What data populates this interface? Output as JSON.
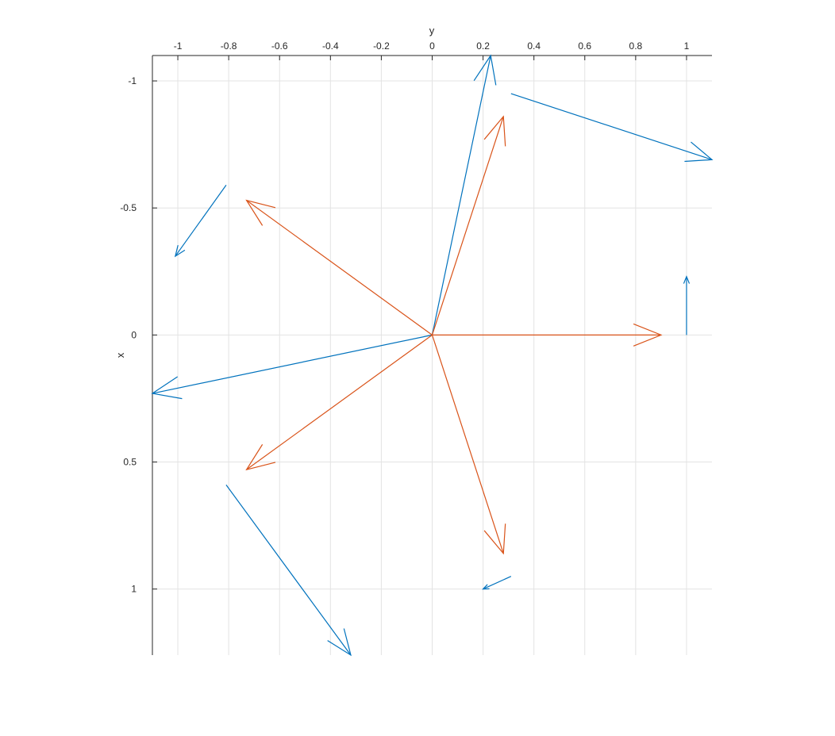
{
  "chart_data": {
    "type": "quiver",
    "title": "",
    "xlabel": "y",
    "ylabel": "x",
    "x_axis_location": "top",
    "y_axis_direction": "reversed",
    "xlim": [
      -1.1,
      1.1
    ],
    "ylim": [
      -1.1,
      1.26
    ],
    "grid": true,
    "x_ticks": [
      -1,
      -0.8,
      -0.6,
      -0.4,
      -0.2,
      0,
      0.2,
      0.4,
      0.6,
      0.8,
      1
    ],
    "x_tick_labels": [
      "-1",
      "-0.8",
      "-0.6",
      "-0.4",
      "-0.2",
      "0",
      "0.2",
      "0.4",
      "0.6",
      "0.8",
      "1"
    ],
    "y_ticks": [
      -1,
      -0.5,
      0,
      0.5,
      1
    ],
    "y_tick_labels": [
      "-1",
      "-0.5",
      "0",
      "0.5",
      "1"
    ],
    "series": [
      {
        "color": "#0072BD",
        "vectors": [
          {
            "y": 0,
            "x": 0,
            "dy": 0.23,
            "dx": -1.1
          },
          {
            "y": 0.31,
            "x": -0.95,
            "dy": 0.79,
            "dx": 0.26
          },
          {
            "y": 1.0,
            "x": 0,
            "dy": 0,
            "dx": -0.23
          },
          {
            "y": 0.31,
            "x": 0.95,
            "dy": -0.11,
            "dx": 0.05
          },
          {
            "y": -0.81,
            "x": 0.59,
            "dy": 0.49,
            "dx": 0.67
          },
          {
            "y": -0.81,
            "x": -0.59,
            "dy": -0.2,
            "dx": 0.28
          },
          {
            "y": 0,
            "x": 0,
            "dy": -1.1,
            "dx": 0.23
          }
        ]
      },
      {
        "color": "#D95319",
        "vectors": [
          {
            "y": 0,
            "x": 0,
            "dy": 0.9,
            "dx": 0
          },
          {
            "y": 0,
            "x": 0,
            "dy": 0.28,
            "dx": -0.86
          },
          {
            "y": 0,
            "x": 0,
            "dy": -0.73,
            "dx": -0.53
          },
          {
            "y": 0,
            "x": 0,
            "dy": -0.73,
            "dx": 0.53
          },
          {
            "y": 0,
            "x": 0,
            "dy": 0.28,
            "dx": 0.86
          }
        ]
      }
    ]
  }
}
